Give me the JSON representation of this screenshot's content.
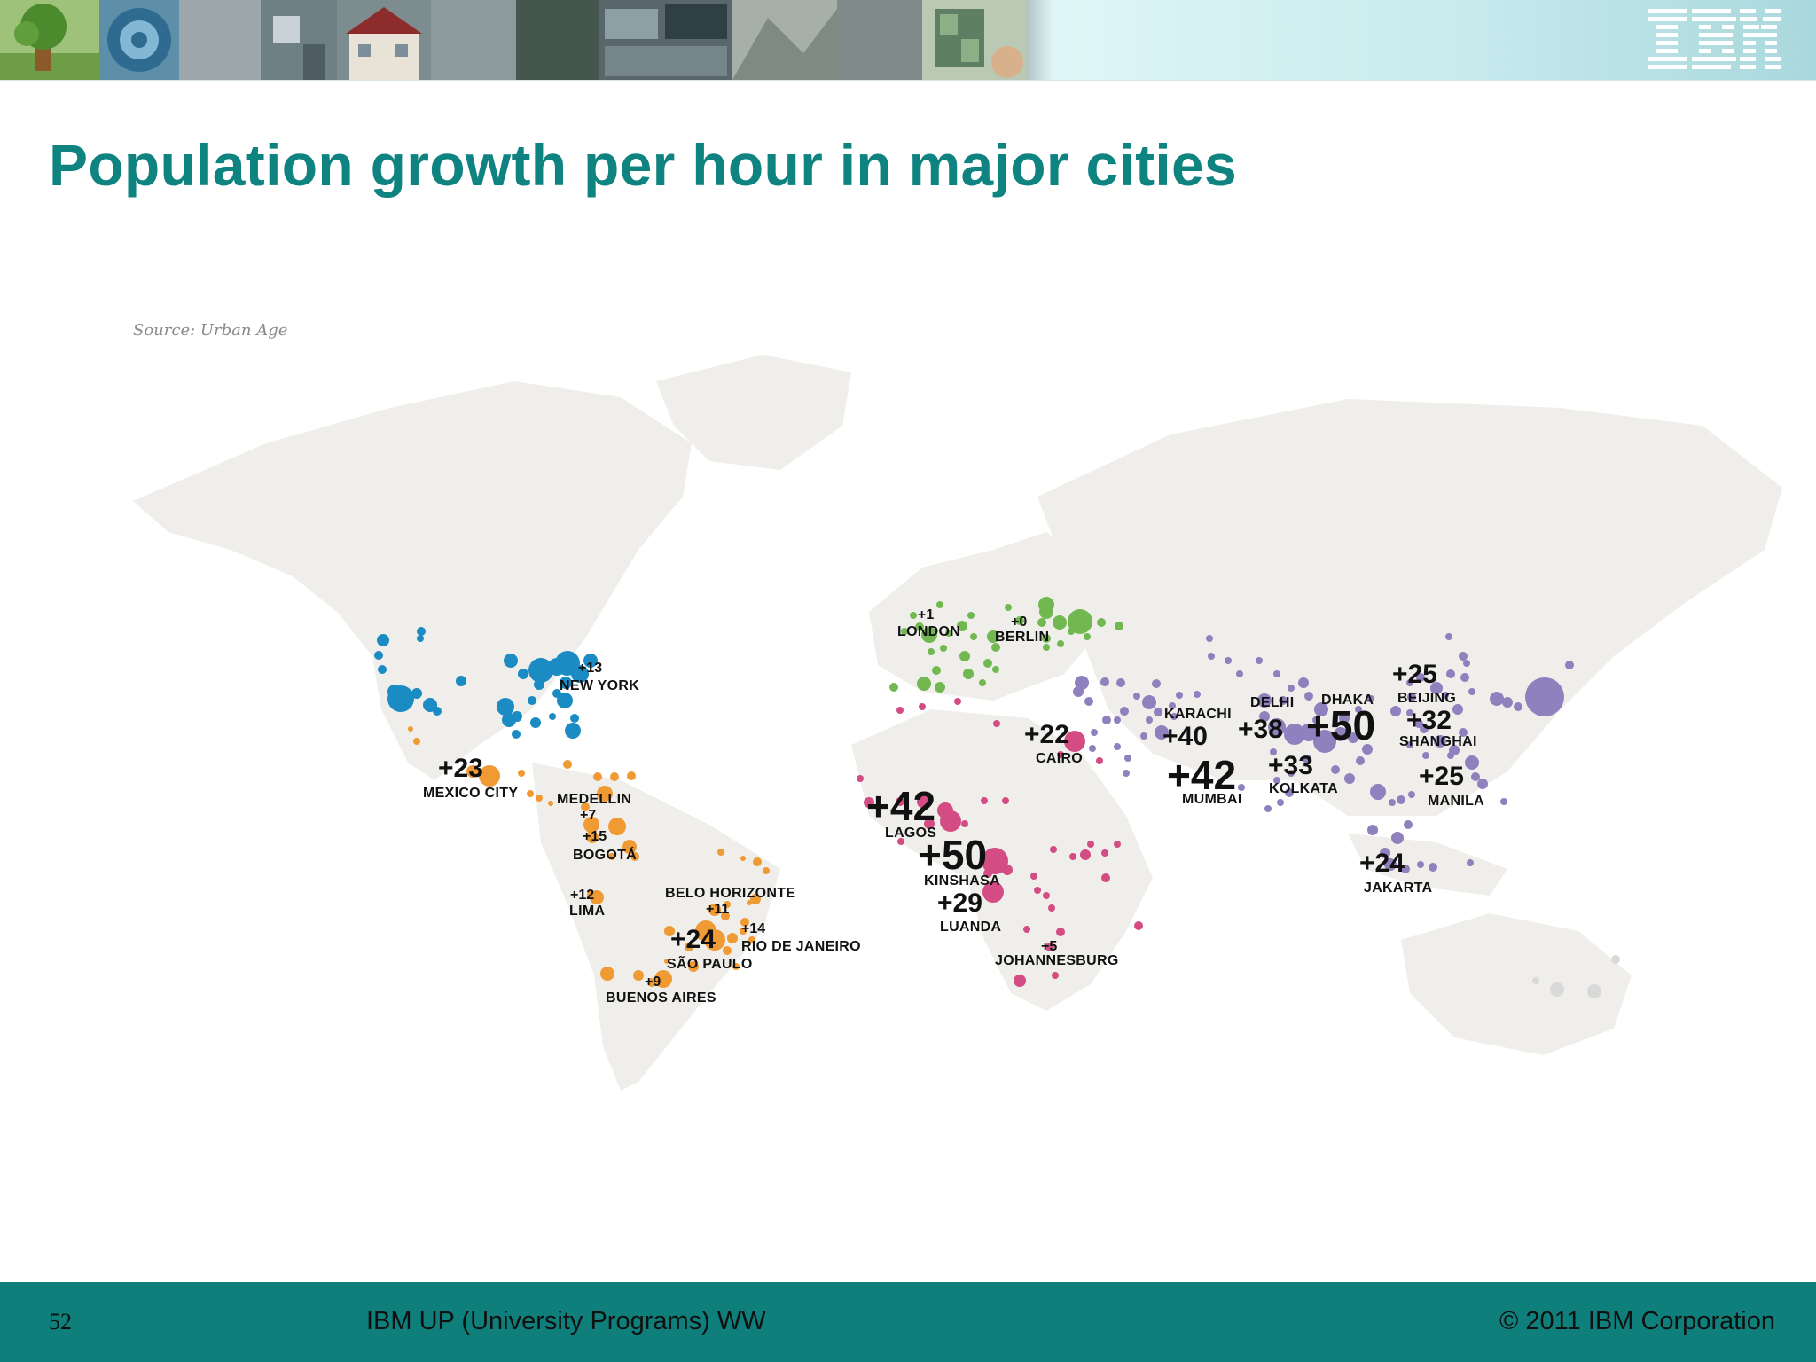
{
  "slide": {
    "title": "Population growth per hour in major cities",
    "source": "Source: Urban Age",
    "page_number": "52",
    "footer_center": "IBM UP (University Programs) WW",
    "footer_right": "© 2011 IBM Corporation",
    "logo_text": "IBM"
  },
  "legend_colors": {
    "north_america": "#1a8bc3",
    "latin_america": "#ef9a33",
    "europe": "#72b851",
    "africa": "#d34c84",
    "asia": "#8f80be",
    "title": "#0f8380",
    "footer": "#0f7f7c"
  },
  "cities": [
    {
      "name": "NEW YORK",
      "value": "+13"
    },
    {
      "name": "MEXICO CITY",
      "value": "+23"
    },
    {
      "name": "MEDELLIN",
      "value": "+7"
    },
    {
      "name": "BOGOTÁ",
      "value": "+15"
    },
    {
      "name": "LIMA",
      "value": "+12"
    },
    {
      "name": "BELO HORIZONTE",
      "value": "+11"
    },
    {
      "name": "RIO DE JANEIRO",
      "value": "+14"
    },
    {
      "name": "SÃO PAULO",
      "value": "+24"
    },
    {
      "name": "BUENOS AIRES",
      "value": "+9"
    },
    {
      "name": "LONDON",
      "value": "+1"
    },
    {
      "name": "BERLIN",
      "value": "+0"
    },
    {
      "name": "CAIRO",
      "value": "+22"
    },
    {
      "name": "LAGOS",
      "value": "+42"
    },
    {
      "name": "KINSHASA",
      "value": "+50"
    },
    {
      "name": "LUANDA",
      "value": "+29"
    },
    {
      "name": "JOHANNESBURG",
      "value": "+5"
    },
    {
      "name": "KARACHI",
      "value": "+40"
    },
    {
      "name": "DELHI",
      "value": "+38"
    },
    {
      "name": "DHAKA",
      "value": "+50"
    },
    {
      "name": "BEIJING",
      "value": "+25"
    },
    {
      "name": "SHANGHAI",
      "value": "+32"
    },
    {
      "name": "MUMBAI",
      "value": "+42"
    },
    {
      "name": "KOLKATA",
      "value": "+33"
    },
    {
      "name": "MANILA",
      "value": "+25"
    },
    {
      "name": "JAKARTA",
      "value": "+24"
    }
  ]
}
